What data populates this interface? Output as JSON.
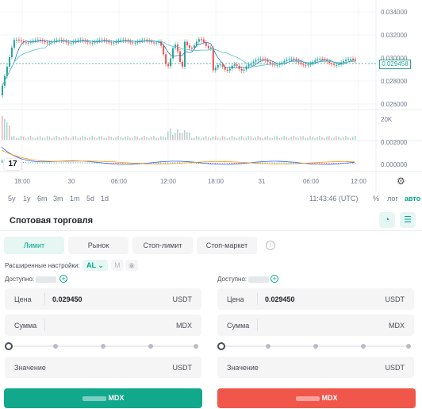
{
  "chart": {
    "price_ticks": [
      "0.034000",
      "0.032000",
      "0.030000",
      "0.028000",
      "0.026000"
    ],
    "current_price": "0.029458",
    "volume_tick": "20K",
    "macd_ticks": [
      "0.002000",
      "0.000000"
    ],
    "time_ticks": [
      "18:00",
      "30",
      "06:00",
      "12:00",
      "18:00",
      "31",
      "06:00",
      "12:00"
    ],
    "logo_text": "17",
    "settings_icon": "gear-icon",
    "colors": {
      "up": "#26a69a",
      "down": "#ef5350",
      "ma_fast": "#2b7bb9",
      "ma_slow": "#55c4c4",
      "accent": "#02a88b"
    }
  },
  "range_bar": {
    "ranges": [
      "5y",
      "1y",
      "6m",
      "3m",
      "1m",
      "5d",
      "1d"
    ],
    "clock": "11:43:46 (UTC)",
    "percent": "%",
    "log": "лог",
    "auto": "авто"
  },
  "panel": {
    "title": "Спотовая торговля",
    "order_types": [
      "Лимит",
      "Рынок",
      "Стоп-лимит",
      "Стоп-маркет"
    ],
    "advanced_label": "Расширенные настройки:",
    "advanced_selected": "AL",
    "advanced_m": "M",
    "buy": {
      "available_label": "Доступно:",
      "price_label": "Цена",
      "price_value": "0.029450",
      "price_unit": "USDT",
      "amount_label": "Сумма",
      "amount_unit": "MDX",
      "total_label": "Значение",
      "total_unit": "USDT",
      "button_label": "MDX"
    },
    "sell": {
      "available_label": "Доступно:",
      "price_label": "Цена",
      "price_value": "0.029450",
      "price_unit": "USDT",
      "amount_label": "Сумма",
      "amount_unit": "MDX",
      "total_label": "Значение",
      "total_unit": "USDT",
      "button_label": "MDX"
    }
  }
}
